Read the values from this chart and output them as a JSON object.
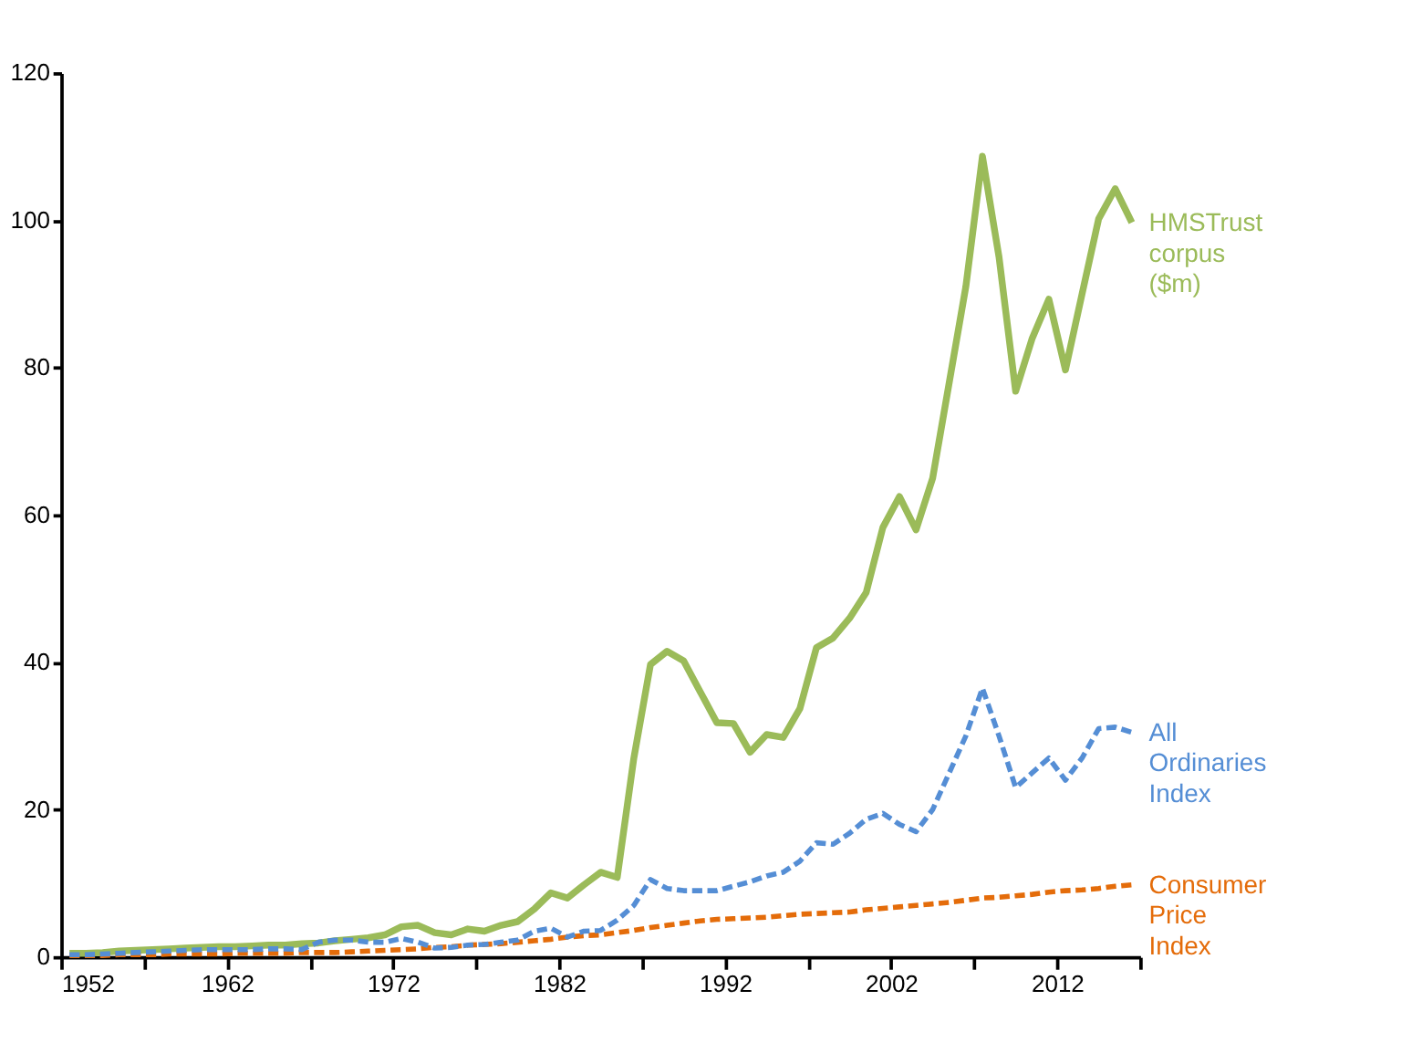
{
  "chart_data": {
    "type": "line",
    "x": [
      1952.5,
      1953.5,
      1954.5,
      1955.5,
      1956.5,
      1957.5,
      1958.5,
      1959.5,
      1960.5,
      1961.5,
      1962.5,
      1963.5,
      1964.5,
      1965.5,
      1966.5,
      1967.5,
      1968.5,
      1969.5,
      1970.5,
      1971.5,
      1972.5,
      1973.5,
      1974.5,
      1975.5,
      1976.5,
      1977.5,
      1978.5,
      1979.5,
      1980.5,
      1981.5,
      1982.5,
      1983.5,
      1984.5,
      1985.5,
      1986.5,
      1987.5,
      1988.5,
      1989.5,
      1990.5,
      1991.5,
      1992.5,
      1993.5,
      1994.5,
      1995.5,
      1996.5,
      1997.5,
      1998.5,
      1999.5,
      2000.5,
      2001.5,
      2002.5,
      2003.5,
      2004.5,
      2005.5,
      2006.5,
      2007.5,
      2008.5,
      2009.5,
      2010.5,
      2011.5,
      2012.5,
      2013.5,
      2014.5,
      2015.5,
      2016.5
    ],
    "series": [
      {
        "name": "HMSTrust corpus ($m)",
        "color": "#9bbb59",
        "line_style": "solid",
        "values": [
          0.5,
          0.5,
          0.6,
          0.8,
          0.9,
          1.0,
          1.1,
          1.2,
          1.3,
          1.4,
          1.4,
          1.5,
          1.6,
          1.6,
          1.8,
          1.9,
          2.2,
          2.4,
          2.6,
          3.0,
          4.1,
          4.3,
          3.3,
          3.0,
          3.8,
          3.5,
          4.3,
          4.8,
          6.5,
          8.7,
          8.0,
          9.8,
          11.5,
          10.8,
          27,
          39.7,
          41.5,
          40.2,
          36,
          31.8,
          31.7,
          27.8,
          30.2,
          29.8,
          33.7,
          42,
          43.3,
          46,
          49.5,
          58.3,
          62.5,
          58,
          65,
          78,
          91,
          108.7,
          95,
          76.8,
          84,
          89.3,
          79.7,
          90,
          100.2,
          104.3,
          99.7
        ]
      },
      {
        "name": "All Ordinaries Index",
        "color": "#558ed5",
        "line_style": "dashed",
        "values": [
          0.3,
          0.3,
          0.4,
          0.5,
          0.6,
          0.7,
          0.8,
          0.9,
          1.0,
          1.0,
          1.0,
          1.0,
          1.1,
          1.1,
          1.0,
          2.0,
          2.3,
          2.3,
          2.0,
          2.0,
          2.5,
          2.0,
          1.2,
          1.3,
          1.6,
          1.7,
          2.0,
          2.3,
          3.5,
          3.9,
          2.7,
          3.5,
          3.6,
          5,
          7,
          10.5,
          9.3,
          9.0,
          9.0,
          9.0,
          9.6,
          10.2,
          11.0,
          11.5,
          13,
          15.5,
          15.3,
          16.8,
          18.7,
          19.5,
          18.0,
          17.0,
          20,
          25,
          30,
          36.5,
          30,
          23,
          25,
          27,
          24,
          27,
          31,
          31.2,
          30.5
        ]
      },
      {
        "name": "Consumer Price Index",
        "color": "#e46c0a",
        "line_style": "dashed",
        "values": [
          0.2,
          0.2,
          0.2,
          0.3,
          0.3,
          0.3,
          0.4,
          0.4,
          0.4,
          0.4,
          0.5,
          0.5,
          0.5,
          0.5,
          0.6,
          0.6,
          0.6,
          0.7,
          0.8,
          0.9,
          1.0,
          1.1,
          1.3,
          1.4,
          1.6,
          1.7,
          1.8,
          2.0,
          2.2,
          2.4,
          2.7,
          2.9,
          3.0,
          3.3,
          3.6,
          4.0,
          4.3,
          4.6,
          4.9,
          5.1,
          5.2,
          5.3,
          5.4,
          5.6,
          5.8,
          5.9,
          6.0,
          6.1,
          6.4,
          6.6,
          6.8,
          7.0,
          7.2,
          7.4,
          7.7,
          8.0,
          8.1,
          8.3,
          8.5,
          8.8,
          9.0,
          9.1,
          9.3,
          9.6,
          9.8
        ]
      }
    ],
    "xlim": [
      1952,
      2017
    ],
    "xticks": [
      1952,
      {
        "value": 1957,
        "label": null
      },
      1962,
      {
        "value": 1967,
        "label": null
      },
      1972,
      {
        "value": 1977,
        "label": null
      },
      1982,
      {
        "value": 1987,
        "label": null
      },
      1992,
      {
        "value": 1997,
        "label": null
      },
      2002,
      {
        "value": 2007,
        "label": null
      },
      2012,
      {
        "value": 2017,
        "label": null
      }
    ],
    "ylim": [
      0,
      120
    ],
    "yticks": [
      0,
      20,
      40,
      60,
      80,
      100,
      120
    ],
    "grid": false,
    "marker": "none"
  }
}
